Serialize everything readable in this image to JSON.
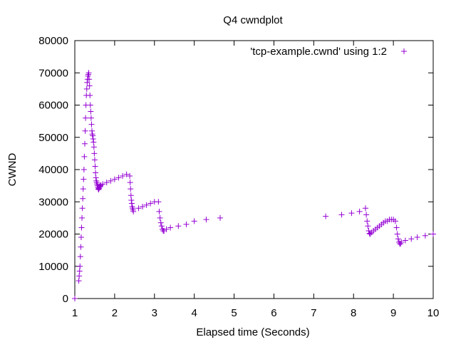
{
  "chart_data": {
    "type": "scatter",
    "title": "Q4 cwndplot",
    "xlabel": "Elapsed time (Seconds)",
    "ylabel": "CWND",
    "xlim": [
      1,
      10
    ],
    "ylim": [
      0,
      80000
    ],
    "xticks": [
      1,
      2,
      3,
      4,
      5,
      6,
      7,
      8,
      9,
      10
    ],
    "yticks": [
      0,
      10000,
      20000,
      30000,
      40000,
      50000,
      60000,
      70000,
      80000
    ],
    "grid": false,
    "legend_position": "top-right",
    "marker": "+",
    "series": [
      {
        "name": "'tcp-example.cwnd' using 1:2",
        "color": "#9400d3",
        "x": [
          1.0,
          1.1,
          1.11,
          1.12,
          1.13,
          1.14,
          1.15,
          1.16,
          1.17,
          1.18,
          1.19,
          1.2,
          1.21,
          1.22,
          1.23,
          1.24,
          1.25,
          1.26,
          1.27,
          1.28,
          1.29,
          1.3,
          1.31,
          1.32,
          1.33,
          1.34,
          1.35,
          1.36,
          1.37,
          1.38,
          1.39,
          1.4,
          1.41,
          1.42,
          1.43,
          1.44,
          1.45,
          1.46,
          1.47,
          1.48,
          1.49,
          1.5,
          1.51,
          1.52,
          1.53,
          1.54,
          1.55,
          1.56,
          1.57,
          1.58,
          1.59,
          1.6,
          1.61,
          1.62,
          1.63,
          1.64,
          1.65,
          1.7,
          1.8,
          1.9,
          2.0,
          2.1,
          2.2,
          2.3,
          2.38,
          2.39,
          2.4,
          2.41,
          2.42,
          2.43,
          2.44,
          2.45,
          2.46,
          2.47,
          2.6,
          2.7,
          2.8,
          2.9,
          3.0,
          3.1,
          3.12,
          3.14,
          3.16,
          3.18,
          3.2,
          3.22,
          3.24,
          3.3,
          3.4,
          3.6,
          3.8,
          4.0,
          4.3,
          4.65,
          7.3,
          7.7,
          7.95,
          8.15,
          8.3,
          8.32,
          8.34,
          8.36,
          8.38,
          8.4,
          8.42,
          8.45,
          8.5,
          8.55,
          8.6,
          8.65,
          8.7,
          8.75,
          8.8,
          8.85,
          8.9,
          8.95,
          9.0,
          9.05,
          9.08,
          9.1,
          9.12,
          9.14,
          9.16,
          9.18,
          9.2,
          9.3,
          9.45,
          9.6,
          9.8,
          10.0
        ],
        "y": [
          0,
          5500,
          7000,
          8500,
          10000,
          13000,
          16000,
          19000,
          22000,
          25000,
          28000,
          31000,
          34000,
          37000,
          40000,
          44000,
          48000,
          52000,
          56000,
          60000,
          63000,
          65000,
          67000,
          68000,
          69000,
          69500,
          70000,
          68000,
          66000,
          63000,
          60000,
          58000,
          56000,
          54000,
          52000,
          51000,
          50500,
          49500,
          48500,
          47000,
          45000,
          43000,
          41000,
          39000,
          37500,
          36500,
          36000,
          35500,
          35000,
          34500,
          34000,
          33800,
          34200,
          34500,
          34800,
          35000,
          35200,
          35500,
          36000,
          36500,
          37000,
          37500,
          38000,
          38500,
          38000,
          36000,
          34000,
          32000,
          30500,
          29500,
          28500,
          28000,
          27500,
          27000,
          28000,
          28500,
          29000,
          29500,
          30000,
          30000,
          27000,
          25000,
          23500,
          22500,
          21500,
          21000,
          21000,
          21500,
          22000,
          22500,
          23000,
          24000,
          24500,
          25000,
          25500,
          26000,
          26500,
          27000,
          28000,
          26000,
          24000,
          22500,
          21000,
          20200,
          20000,
          20500,
          21000,
          21500,
          22000,
          22500,
          23000,
          23500,
          24000,
          24000,
          24500,
          24500,
          24500,
          24000,
          22000,
          20000,
          18500,
          17500,
          17000,
          17000,
          17500,
          18000,
          18500,
          19000,
          19500,
          20000
        ]
      }
    ]
  }
}
